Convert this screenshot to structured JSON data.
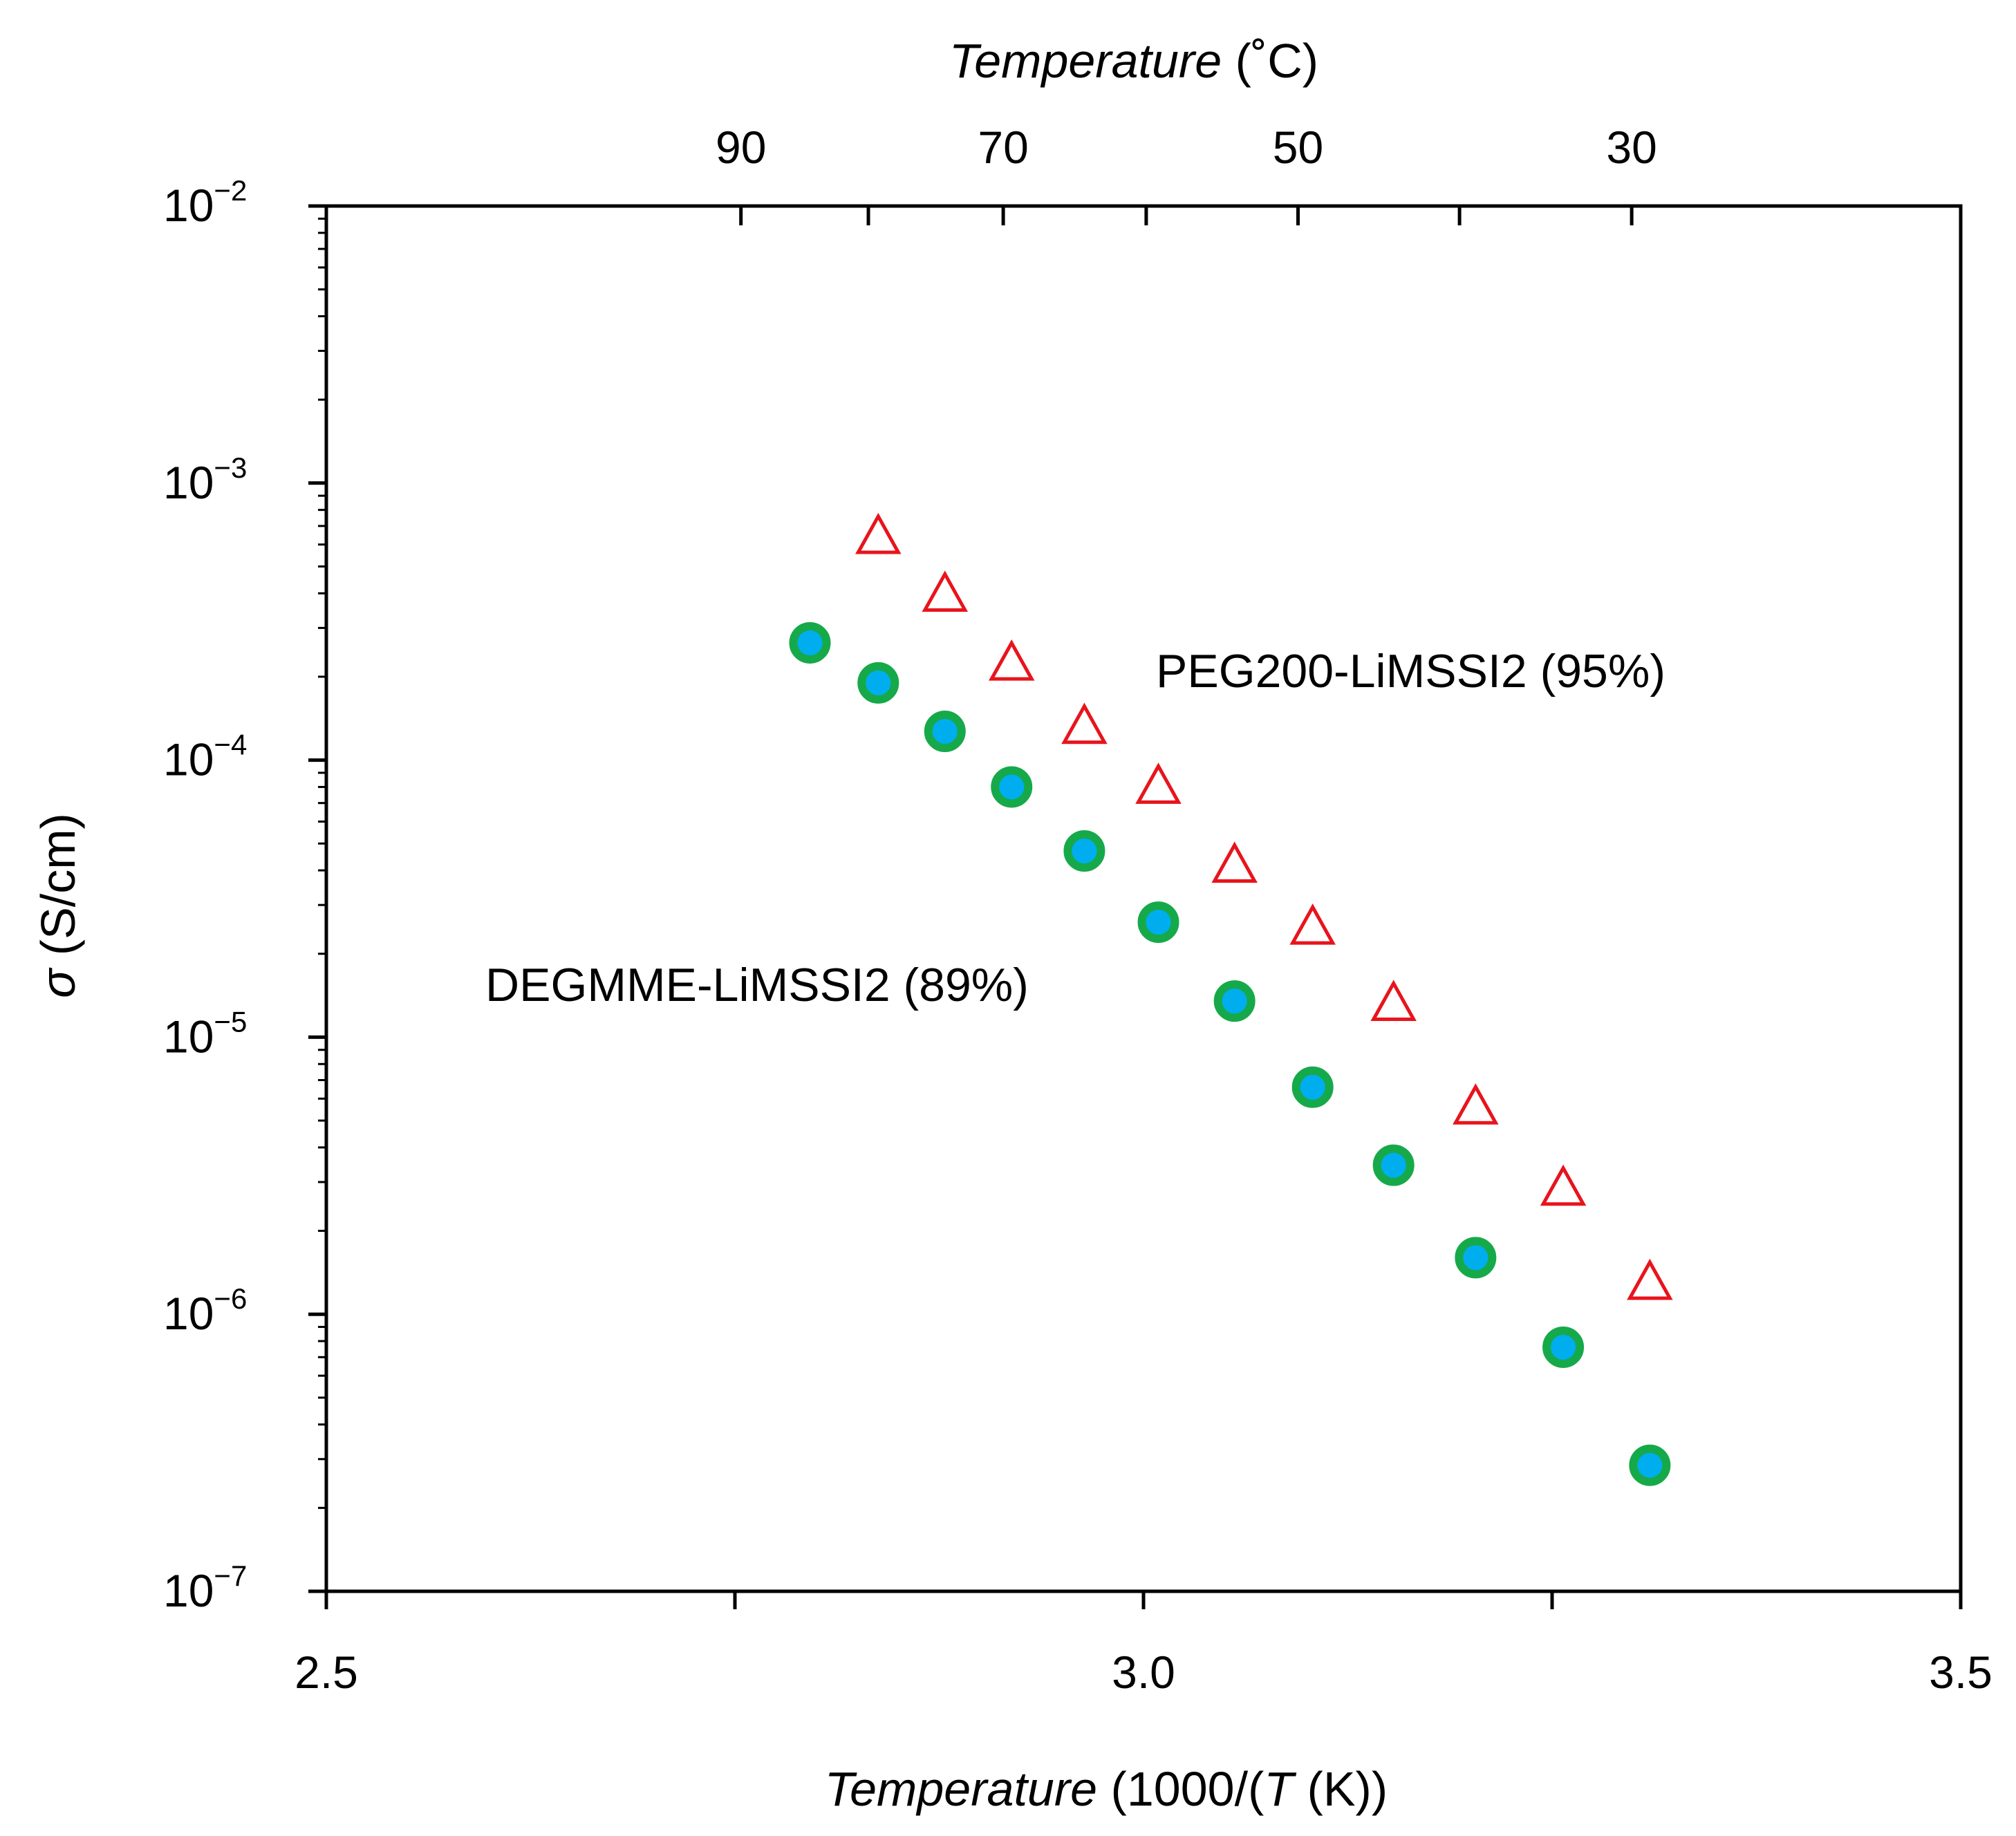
{
  "chart_data": {
    "type": "scatter",
    "title": "",
    "xlabel": {
      "italic": "Temperature",
      "before_T": " (1000/(",
      "T": "T",
      "after_T": " (K))"
    },
    "top_xlabel": {
      "italic": "Temperature",
      "rest": " (˚C)"
    },
    "ylabel": {
      "symbol": "σ",
      "rest": " (S/cm)"
    },
    "xlim": [
      2.5,
      3.5
    ],
    "ylim": [
      1e-07,
      0.01
    ],
    "yscale": "log",
    "x_ticks": [
      {
        "value": 2.5,
        "label": "2.5"
      },
      {
        "value": 2.75,
        "label": ""
      },
      {
        "value": 3.0,
        "label": "3.0"
      },
      {
        "value": 3.25,
        "label": ""
      },
      {
        "value": 3.5,
        "label": "3.5"
      }
    ],
    "top_ticks": [
      {
        "celsius": 90,
        "label": "90"
      },
      {
        "celsius": 80,
        "label": ""
      },
      {
        "celsius": 70,
        "label": "70"
      },
      {
        "celsius": 60,
        "label": ""
      },
      {
        "celsius": 50,
        "label": "50"
      },
      {
        "celsius": 40,
        "label": ""
      },
      {
        "celsius": 30,
        "label": "30"
      }
    ],
    "y_ticks": [
      {
        "value": 0.01,
        "base": "10",
        "exp": "−2"
      },
      {
        "value": 0.001,
        "base": "10",
        "exp": "−3"
      },
      {
        "value": 0.0001,
        "base": "10",
        "exp": "−4"
      },
      {
        "value": 1e-05,
        "base": "10",
        "exp": "−5"
      },
      {
        "value": 1e-06,
        "base": "10",
        "exp": "−6"
      },
      {
        "value": 1e-07,
        "base": "10",
        "exp": "−7"
      }
    ],
    "series": [
      {
        "name": "PEG200-LiMSSI2 (95%)",
        "marker": "triangle-open",
        "color": "#e8141c",
        "x": [
          2.8377,
          2.8785,
          2.9193,
          2.9638,
          3.0091,
          3.0557,
          3.1035,
          3.153,
          3.2032,
          3.2568,
          3.3098
        ],
        "y": [
          0.00063,
          0.00039,
          0.00022,
          0.00013,
          7.9e-05,
          4.1e-05,
          2.45e-05,
          1.3e-05,
          5.5e-06,
          2.8e-06,
          1.28e-06
        ]
      },
      {
        "name": "DEGMME-LiMSSI2 (89%)",
        "marker": "circle-filled",
        "color": "#00aeef",
        "edge_color": "#16a94a",
        "x": [
          2.7959,
          2.8377,
          2.8785,
          2.9193,
          2.9638,
          3.0091,
          3.0557,
          3.1035,
          3.153,
          3.2032,
          3.2568,
          3.3098
        ],
        "y": [
          0.000265,
          0.00019,
          0.000127,
          8e-05,
          4.7e-05,
          2.6e-05,
          1.35e-05,
          6.6e-06,
          3.45e-06,
          1.6e-06,
          7.6e-07,
          2.85e-07
        ]
      }
    ]
  }
}
